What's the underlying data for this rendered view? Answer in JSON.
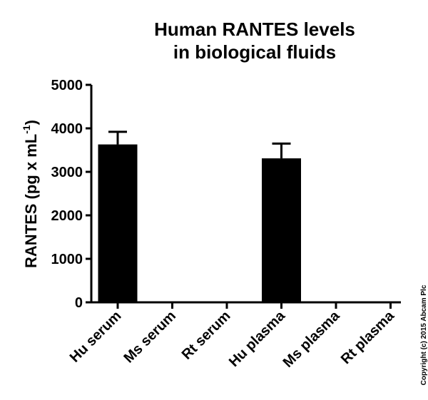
{
  "chart_data": {
    "type": "bar",
    "title": [
      "Human RANTES levels",
      "in biological fluids"
    ],
    "ylabel": "RANTES (pg x mL",
    "ylabel_sup": "-1",
    "ylabel_end": ")",
    "categories": [
      "Hu serum",
      "Ms serum",
      "Rt serum",
      "Hu plasma",
      "Ms plasma",
      "Rt plasma"
    ],
    "values": [
      3630,
      null,
      null,
      3310,
      null,
      null
    ],
    "errors": [
      290,
      null,
      null,
      340,
      null,
      null
    ],
    "color": "#000000",
    "ylim": [
      0,
      5000
    ],
    "yticks": [
      0,
      1000,
      2000,
      3000,
      4000,
      5000
    ],
    "copyright": "Copyright (c) 2015 Abcam Plc"
  }
}
